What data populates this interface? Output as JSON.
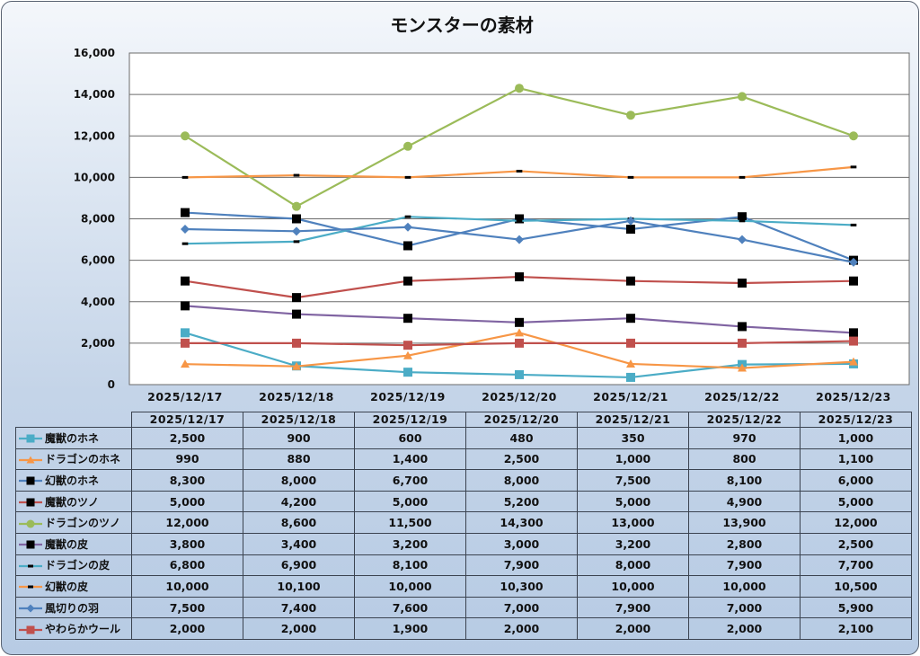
{
  "chart_data": {
    "type": "line",
    "title": "モンスターの素材",
    "xlabel": "",
    "ylabel": "",
    "ylim": [
      0,
      16000
    ],
    "yticks": [
      0,
      2000,
      4000,
      6000,
      8000,
      10000,
      12000,
      14000,
      16000
    ],
    "ytick_labels": [
      "0",
      "2,000",
      "4,000",
      "6,000",
      "8,000",
      "10,000",
      "12,000",
      "14,000",
      "16,000"
    ],
    "grid": true,
    "legend": "data-table",
    "categories": [
      "2025/12/17",
      "2025/12/18",
      "2025/12/19",
      "2025/12/20",
      "2025/12/21",
      "2025/12/22",
      "2025/12/23"
    ],
    "series": [
      {
        "name": "魔獣のホネ",
        "color": "#4bacc6",
        "marker": "square",
        "marker_color": "#4bacc6",
        "values": [
          2500,
          900,
          600,
          480,
          350,
          970,
          1000
        ],
        "labels": [
          "2,500",
          "900",
          "600",
          "480",
          "350",
          "970",
          "1,000"
        ]
      },
      {
        "name": "ドラゴンのホネ",
        "color": "#f79646",
        "marker": "triangle",
        "marker_color": "#f79646",
        "values": [
          990,
          880,
          1400,
          2500,
          1000,
          800,
          1100
        ],
        "labels": [
          "990",
          "880",
          "1,400",
          "2,500",
          "1,000",
          "800",
          "1,100"
        ]
      },
      {
        "name": "幻獣のホネ",
        "color": "#4f81bd",
        "marker": "square",
        "marker_color": "#000000",
        "values": [
          8300,
          8000,
          6700,
          8000,
          7500,
          8100,
          6000
        ],
        "labels": [
          "8,300",
          "8,000",
          "6,700",
          "8,000",
          "7,500",
          "8,100",
          "6,000"
        ]
      },
      {
        "name": "魔獣のツノ",
        "color": "#c0504d",
        "marker": "square",
        "marker_color": "#000000",
        "values": [
          5000,
          4200,
          5000,
          5200,
          5000,
          4900,
          5000
        ],
        "labels": [
          "5,000",
          "4,200",
          "5,000",
          "5,200",
          "5,000",
          "4,900",
          "5,000"
        ]
      },
      {
        "name": "ドラゴンのツノ",
        "color": "#9bbb59",
        "marker": "circle",
        "marker_color": "#9bbb59",
        "values": [
          12000,
          8600,
          11500,
          14300,
          13000,
          13900,
          12000
        ],
        "labels": [
          "12,000",
          "8,600",
          "11,500",
          "14,300",
          "13,000",
          "13,900",
          "12,000"
        ]
      },
      {
        "name": "魔獣の皮",
        "color": "#8064a2",
        "marker": "square",
        "marker_color": "#000000",
        "values": [
          3800,
          3400,
          3200,
          3000,
          3200,
          2800,
          2500
        ],
        "labels": [
          "3,800",
          "3,400",
          "3,200",
          "3,000",
          "3,200",
          "2,800",
          "2,500"
        ]
      },
      {
        "name": "ドラゴンの皮",
        "color": "#4bacc6",
        "marker": "dash",
        "marker_color": "#000000",
        "values": [
          6800,
          6900,
          8100,
          7900,
          8000,
          7900,
          7700
        ],
        "labels": [
          "6,800",
          "6,900",
          "8,100",
          "7,900",
          "8,000",
          "7,900",
          "7,700"
        ]
      },
      {
        "name": "幻獣の皮",
        "color": "#f79646",
        "marker": "dash",
        "marker_color": "#000000",
        "values": [
          10000,
          10100,
          10000,
          10300,
          10000,
          10000,
          10500
        ],
        "labels": [
          "10,000",
          "10,100",
          "10,000",
          "10,300",
          "10,000",
          "10,000",
          "10,500"
        ]
      },
      {
        "name": "風切りの羽",
        "color": "#4f81bd",
        "marker": "diamond",
        "marker_color": "#4f81bd",
        "values": [
          7500,
          7400,
          7600,
          7000,
          7900,
          7000,
          5900
        ],
        "labels": [
          "7,500",
          "7,400",
          "7,600",
          "7,000",
          "7,900",
          "7,000",
          "5,900"
        ]
      },
      {
        "name": "やわらかウール",
        "color": "#c0504d",
        "marker": "square",
        "marker_color": "#c0504d",
        "values": [
          2000,
          2000,
          1900,
          2000,
          2000,
          2000,
          2100
        ],
        "labels": [
          "2,000",
          "2,000",
          "1,900",
          "2,000",
          "2,000",
          "2,000",
          "2,100"
        ]
      }
    ]
  }
}
